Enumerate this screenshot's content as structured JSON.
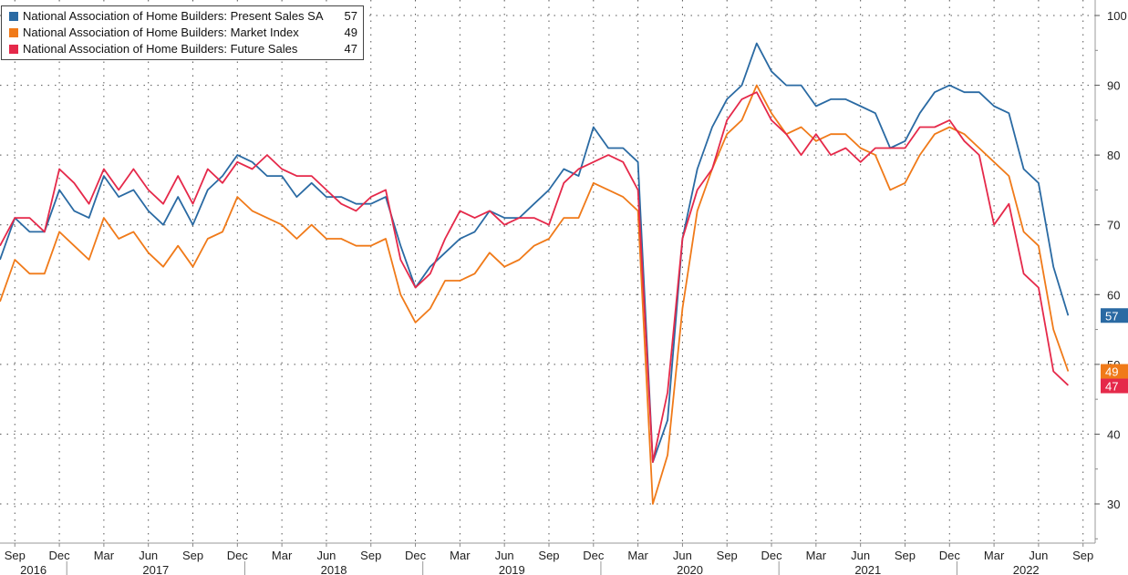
{
  "chart_data": {
    "type": "line",
    "x_start": "2016-08",
    "x_end": "2022-09",
    "y_axis": {
      "ticks": [
        30,
        40,
        50,
        60,
        70,
        80,
        90,
        100
      ],
      "ylim": [
        24,
        102
      ],
      "side": "right"
    },
    "x_axis": {
      "month_labels": [
        {
          "date": "2016-09",
          "label": "Sep"
        },
        {
          "date": "2016-12",
          "label": "Dec"
        },
        {
          "date": "2017-03",
          "label": "Mar"
        },
        {
          "date": "2017-06",
          "label": "Jun"
        },
        {
          "date": "2017-09",
          "label": "Sep"
        },
        {
          "date": "2017-12",
          "label": "Dec"
        },
        {
          "date": "2018-03",
          "label": "Mar"
        },
        {
          "date": "2018-06",
          "label": "Jun"
        },
        {
          "date": "2018-09",
          "label": "Sep"
        },
        {
          "date": "2018-12",
          "label": "Dec"
        },
        {
          "date": "2019-03",
          "label": "Mar"
        },
        {
          "date": "2019-06",
          "label": "Jun"
        },
        {
          "date": "2019-09",
          "label": "Sep"
        },
        {
          "date": "2019-12",
          "label": "Dec"
        },
        {
          "date": "2020-03",
          "label": "Mar"
        },
        {
          "date": "2020-06",
          "label": "Jun"
        },
        {
          "date": "2020-09",
          "label": "Sep"
        },
        {
          "date": "2020-12",
          "label": "Dec"
        },
        {
          "date": "2021-03",
          "label": "Mar"
        },
        {
          "date": "2021-06",
          "label": "Jun"
        },
        {
          "date": "2021-09",
          "label": "Sep"
        },
        {
          "date": "2021-12",
          "label": "Dec"
        },
        {
          "date": "2022-03",
          "label": "Mar"
        },
        {
          "date": "2022-06",
          "label": "Jun"
        },
        {
          "date": "2022-09",
          "label": "Sep"
        }
      ],
      "year_labels": [
        "2016",
        "2017",
        "2018",
        "2019",
        "2020",
        "2021",
        "2022"
      ]
    },
    "grid": "dotted",
    "legend_position": "top-left",
    "series": [
      {
        "name": "National Association of Home Builders: Present Sales SA",
        "last_label": "57",
        "color": "#2a6aa3",
        "values": [
          65,
          71,
          69,
          69,
          75,
          72,
          71,
          77,
          74,
          75,
          72,
          70,
          74,
          70,
          75,
          77,
          80,
          79,
          77,
          77,
          74,
          76,
          74,
          74,
          73,
          73,
          74,
          67,
          61,
          64,
          66,
          68,
          69,
          72,
          71,
          71,
          73,
          75,
          78,
          77,
          84,
          81,
          81,
          79,
          36,
          42,
          68,
          78,
          84,
          88,
          90,
          96,
          92,
          90,
          90,
          87,
          88,
          88,
          87,
          86,
          81,
          82,
          86,
          89,
          90,
          89,
          89,
          87,
          86,
          78,
          76,
          64,
          57
        ]
      },
      {
        "name": "National Association of Home Builders: Market Index",
        "last_label": "49",
        "color": "#f07a19",
        "values": [
          59,
          65,
          63,
          63,
          69,
          67,
          65,
          71,
          68,
          69,
          66,
          64,
          67,
          64,
          68,
          69,
          74,
          72,
          71,
          70,
          68,
          70,
          68,
          68,
          67,
          67,
          68,
          60,
          56,
          58,
          62,
          62,
          63,
          66,
          64,
          65,
          67,
          68,
          71,
          71,
          76,
          75,
          74,
          72,
          30,
          37,
          58,
          72,
          78,
          83,
          85,
          90,
          86,
          83,
          84,
          82,
          83,
          83,
          81,
          80,
          75,
          76,
          80,
          83,
          84,
          83,
          81,
          79,
          77,
          69,
          67,
          55,
          49
        ]
      },
      {
        "name": "National Association of Home Builders: Future Sales",
        "last_label": "47",
        "color": "#e5294a",
        "values": [
          67,
          71,
          71,
          69,
          78,
          76,
          73,
          78,
          75,
          78,
          75,
          73,
          77,
          73,
          78,
          76,
          79,
          78,
          80,
          78,
          77,
          77,
          75,
          73,
          72,
          74,
          75,
          65,
          61,
          63,
          68,
          72,
          71,
          72,
          70,
          71,
          71,
          70,
          76,
          78,
          79,
          80,
          79,
          75,
          36,
          46,
          68,
          75,
          78,
          85,
          88,
          89,
          85,
          83,
          80,
          83,
          80,
          81,
          79,
          81,
          81,
          81,
          84,
          84,
          85,
          82,
          80,
          70,
          73,
          63,
          61,
          49,
          47
        ]
      }
    ]
  }
}
